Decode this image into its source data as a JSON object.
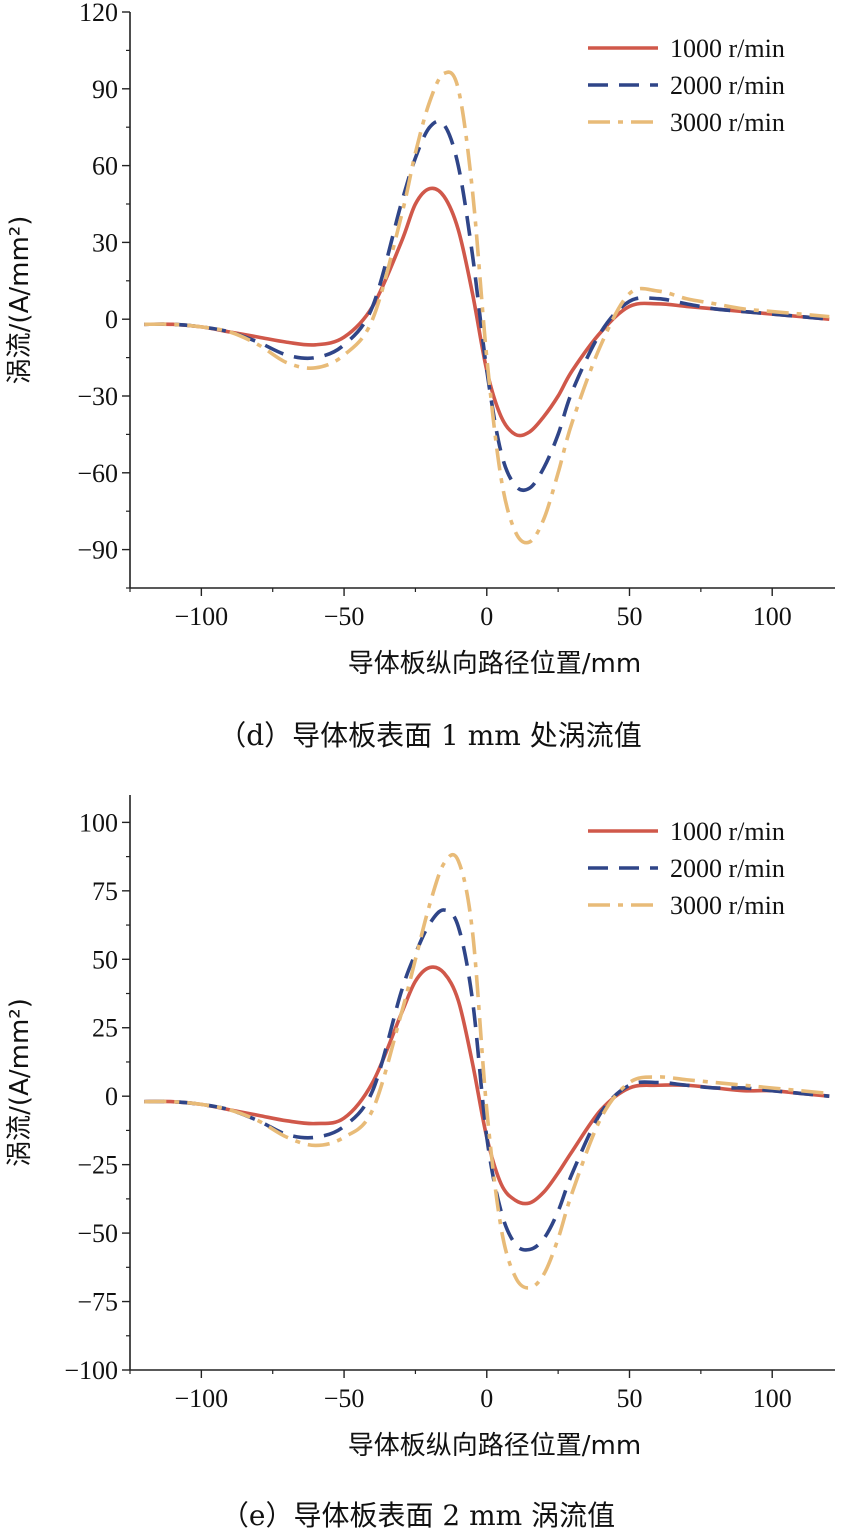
{
  "chart_data": [
    {
      "type": "line",
      "caption": "（d）导体板表面 1 mm 处涡流值",
      "xlabel": "导体板纵向路径位置/mm",
      "ylabel": "涡流/(A/mm²)",
      "xlim": [
        -125,
        122
      ],
      "ylim": [
        -105,
        120
      ],
      "xticks": [
        -100,
        -50,
        0,
        50,
        100
      ],
      "yticks": [
        -90,
        -60,
        -30,
        0,
        30,
        60,
        90,
        120
      ],
      "legend_position": "top-right",
      "x": [
        -120,
        -110,
        -100,
        -90,
        -80,
        -70,
        -60,
        -50,
        -40,
        -30,
        -25,
        -20,
        -15,
        -10,
        -5,
        0,
        5,
        10,
        15,
        20,
        25,
        30,
        40,
        50,
        60,
        70,
        80,
        90,
        100,
        110,
        120
      ],
      "series": [
        {
          "name": "1000 r/min",
          "color": "#d0584a",
          "dash": "solid",
          "values": [
            -2,
            -2,
            -3,
            -5,
            -7,
            -9,
            -10,
            -7,
            5,
            30,
            45,
            51,
            48,
            35,
            10,
            -20,
            -38,
            -45,
            -44,
            -38,
            -30,
            -20,
            -5,
            5,
            6,
            5,
            4,
            3,
            2,
            1,
            0
          ]
        },
        {
          "name": "2000 r/min",
          "color": "#2f4588",
          "dash": "dashed",
          "values": [
            -2,
            -2,
            -3,
            -5,
            -9,
            -14,
            -15,
            -10,
            5,
            45,
            63,
            75,
            76,
            60,
            25,
            -20,
            -52,
            -65,
            -66,
            -58,
            -45,
            -28,
            -5,
            7,
            8,
            6,
            4,
            3,
            2,
            1,
            0
          ]
        },
        {
          "name": "3000 r/min",
          "color": "#e8bb78",
          "dash": "dashdot",
          "values": [
            -2,
            -2,
            -3,
            -5,
            -10,
            -17,
            -19,
            -14,
            0,
            40,
            65,
            85,
            96,
            90,
            50,
            -15,
            -62,
            -83,
            -87,
            -78,
            -60,
            -40,
            -10,
            10,
            11,
            8,
            6,
            4,
            3,
            2,
            1
          ]
        }
      ]
    },
    {
      "type": "line",
      "caption": "（e）导体板表面 2 mm 涡流值",
      "xlabel": "导体板纵向路径位置/mm",
      "ylabel": "涡流/(A/mm²)",
      "xlim": [
        -125,
        122
      ],
      "ylim": [
        -100,
        110
      ],
      "xticks": [
        -100,
        -50,
        0,
        50,
        100
      ],
      "yticks": [
        -100,
        -75,
        -50,
        -25,
        0,
        25,
        50,
        75,
        100
      ],
      "legend_position": "top-right",
      "x": [
        -120,
        -110,
        -100,
        -90,
        -80,
        -70,
        -60,
        -50,
        -40,
        -30,
        -25,
        -20,
        -15,
        -10,
        -5,
        0,
        5,
        10,
        15,
        20,
        25,
        30,
        40,
        50,
        60,
        70,
        80,
        90,
        100,
        110,
        120
      ],
      "series": [
        {
          "name": "1000 r/min",
          "color": "#d0584a",
          "dash": "solid",
          "values": [
            -2,
            -2,
            -3,
            -5,
            -7,
            -9,
            -10,
            -8,
            5,
            30,
            42,
            47,
            45,
            35,
            12,
            -15,
            -32,
            -38,
            -39,
            -35,
            -28,
            -20,
            -5,
            3,
            4,
            4,
            3,
            2,
            2,
            1,
            0
          ]
        },
        {
          "name": "2000 r/min",
          "color": "#2f4588",
          "dash": "dashed",
          "values": [
            -2,
            -2,
            -3,
            -5,
            -9,
            -14,
            -15,
            -11,
            2,
            38,
            52,
            63,
            68,
            62,
            35,
            -15,
            -42,
            -54,
            -56,
            -52,
            -42,
            -28,
            -6,
            4,
            5,
            4,
            3,
            3,
            2,
            1,
            0
          ]
        },
        {
          "name": "3000 r/min",
          "color": "#e8bb78",
          "dash": "dashdot",
          "values": [
            -2,
            -2,
            -3,
            -5,
            -9,
            -15,
            -18,
            -15,
            -5,
            30,
            50,
            70,
            85,
            86,
            60,
            -5,
            -48,
            -66,
            -70,
            -65,
            -52,
            -35,
            -8,
            5,
            7,
            6,
            5,
            4,
            3,
            2,
            1
          ]
        }
      ]
    }
  ]
}
